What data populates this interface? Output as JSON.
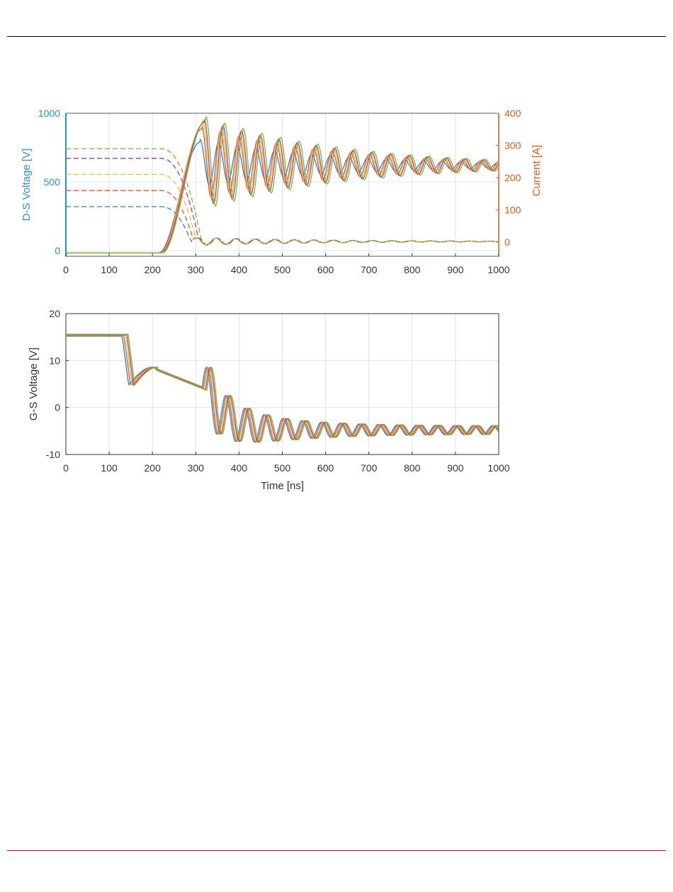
{
  "colors": {
    "left_axis": "#2a8fd6",
    "right_axis": "#e05a1c",
    "series": [
      "#2f7fd1",
      "#e5572b",
      "#f0c020",
      "#9b3fa0",
      "#77b82f",
      "#3a9fc0",
      "#a2252c"
    ]
  },
  "chart_data": [
    {
      "type": "line",
      "ylabel": "D-S Voltage [V]",
      "ylabel_right": "Current [A]",
      "xlim": [
        0,
        1000
      ],
      "ylim": [
        -40,
        1000
      ],
      "ylim_right": [
        -44,
        400
      ],
      "xticks": [
        "0",
        "100",
        "200",
        "300",
        "400",
        "500",
        "600",
        "700",
        "800",
        "900",
        "1000"
      ],
      "yticks": [
        "0",
        "500",
        "1000"
      ],
      "yticks_right": [
        "0",
        "100",
        "200",
        "300",
        "400"
      ],
      "grid": true,
      "series_voltage_solid": [
        {
          "color_index": 0,
          "rise_ns": 302,
          "peak_v": 790,
          "settle_v": 620,
          "ring_period_ns": 43
        },
        {
          "color_index": 1,
          "rise_ns": 306,
          "peak_v": 885,
          "settle_v": 620,
          "ring_period_ns": 43
        },
        {
          "color_index": 2,
          "rise_ns": 309,
          "peak_v": 915,
          "settle_v": 620,
          "ring_period_ns": 43
        },
        {
          "color_index": 3,
          "rise_ns": 312,
          "peak_v": 935,
          "settle_v": 620,
          "ring_period_ns": 43
        },
        {
          "color_index": 4,
          "rise_ns": 316,
          "peak_v": 955,
          "settle_v": 620,
          "ring_period_ns": 43
        }
      ],
      "series_current_dashed": [
        {
          "color_index": 0,
          "initial_a": 110
        },
        {
          "color_index": 1,
          "initial_a": 160
        },
        {
          "color_index": 2,
          "initial_a": 210
        },
        {
          "color_index": 3,
          "initial_a": 260
        },
        {
          "color_index": 4,
          "initial_a": 290
        }
      ]
    },
    {
      "type": "line",
      "xlabel": "Time [ns]",
      "ylabel": "G-S Voltage [V]",
      "xlim": [
        0,
        1000
      ],
      "ylim": [
        -10,
        20
      ],
      "xticks": [
        "0",
        "100",
        "200",
        "300",
        "400",
        "500",
        "600",
        "700",
        "800",
        "900",
        "1000"
      ],
      "yticks": [
        "-10",
        "0",
        "10",
        "20"
      ],
      "grid": true,
      "series": [
        {
          "color_index": 0,
          "initial_v": 15.2,
          "drop_ns": 130,
          "final_v": -4.8
        },
        {
          "color_index": 1,
          "initial_v": 15.3,
          "drop_ns": 134,
          "final_v": -4.8
        },
        {
          "color_index": 2,
          "initial_v": 15.4,
          "drop_ns": 138,
          "final_v": -4.8
        },
        {
          "color_index": 3,
          "initial_v": 15.5,
          "drop_ns": 141,
          "final_v": -4.8
        },
        {
          "color_index": 4,
          "initial_v": 15.6,
          "drop_ns": 144,
          "final_v": -4.8
        }
      ]
    }
  ]
}
